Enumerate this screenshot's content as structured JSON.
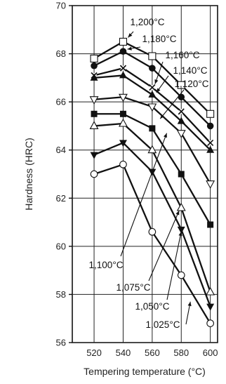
{
  "chart_data": {
    "type": "line",
    "xlabel": "Tempering temperature (°C)",
    "ylabel": "Hardness (HRC)",
    "xlim": [
      505,
      605
    ],
    "ylim": [
      56,
      70
    ],
    "x_ticks": [
      520,
      540,
      560,
      580,
      600
    ],
    "y_ticks": [
      56,
      58,
      60,
      62,
      64,
      66,
      68,
      70
    ],
    "x_tick_labels": [
      "520",
      "540",
      "560",
      "580",
      "600"
    ],
    "y_tick_labels": [
      "56",
      "58",
      "60",
      "62",
      "64",
      "66",
      "68",
      "70"
    ],
    "grid": true,
    "x": [
      520,
      540,
      560,
      580,
      600
    ],
    "series": [
      {
        "name": "1,200°C",
        "marker": "square-open",
        "values": [
          67.8,
          68.5,
          67.9,
          66.7,
          65.5
        ]
      },
      {
        "name": "1,180°C",
        "marker": "circle-filled",
        "values": [
          67.5,
          68.1,
          67.4,
          66.2,
          65.0
        ]
      },
      {
        "name": "1,160°C",
        "marker": "cross",
        "values": [
          67.1,
          67.4,
          66.6,
          65.6,
          64.3
        ]
      },
      {
        "name": "1,140°C",
        "marker": "triangle-up-filled",
        "values": [
          67.0,
          67.1,
          66.3,
          65.2,
          64.0
        ]
      },
      {
        "name": "1,120°C",
        "marker": "triangle-down-open",
        "values": [
          66.1,
          66.2,
          65.8,
          64.7,
          62.6
        ]
      },
      {
        "name": "1,100°C",
        "marker": "square-filled",
        "values": [
          65.5,
          65.5,
          64.9,
          63.0,
          60.9
        ]
      },
      {
        "name": "1,075°C",
        "marker": "triangle-up-open",
        "values": [
          65.0,
          65.1,
          64.0,
          61.6,
          58.1
        ]
      },
      {
        "name": "1,050°C",
        "marker": "triangle-down-filled",
        "values": [
          63.8,
          64.3,
          63.1,
          60.7,
          57.5
        ]
      },
      {
        "name": "1,025°C",
        "marker": "circle-open",
        "values": [
          63.0,
          63.4,
          60.6,
          58.8,
          56.8
        ]
      }
    ]
  }
}
